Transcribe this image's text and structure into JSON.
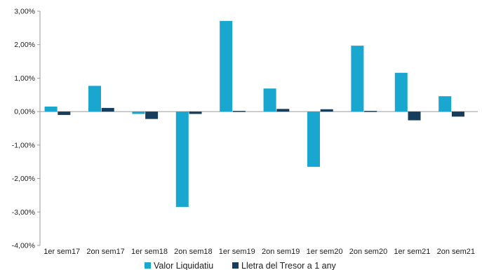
{
  "chart_data": {
    "type": "bar",
    "categories": [
      "1er sem17",
      "2on sem17",
      "1er sem18",
      "2on sem18",
      "1er sem19",
      "2on sem19",
      "1er sem20",
      "2on sem20",
      "1er sem21",
      "2on sem21"
    ],
    "series": [
      {
        "name": "Valor Liquidatiu",
        "color": "#1aa7cf",
        "values": [
          0.15,
          0.77,
          -0.07,
          -2.85,
          2.71,
          0.69,
          -1.65,
          1.97,
          1.16,
          0.46
        ]
      },
      {
        "name": "Lletra del Tresor a 1 any",
        "color": "#163e5c",
        "values": [
          -0.1,
          0.11,
          -0.22,
          -0.07,
          0.02,
          0.08,
          0.07,
          0.02,
          -0.26,
          -0.15
        ]
      }
    ],
    "y_ticks": [
      "3,00%",
      "2,00%",
      "1,00%",
      "0,00%",
      "-1,00%",
      "-2,00%",
      "-3,00%",
      "-4,00%"
    ],
    "ylim": [
      -4,
      3
    ],
    "grid": false,
    "legend_position": "bottom"
  }
}
